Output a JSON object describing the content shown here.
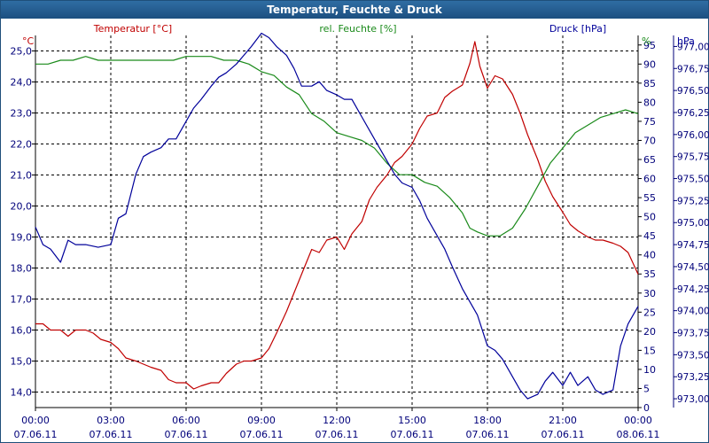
{
  "title": "Temperatur, Feuchte & Druck",
  "colors": {
    "temperature": "#c00000",
    "humidity": "#1a8a1a",
    "pressure": "#00009a",
    "axis": "#00007a",
    "titlebar": "#2a6299"
  },
  "chart_data": {
    "type": "line",
    "title": "Temperatur, Feuchte & Druck",
    "grid": true,
    "x": {
      "range": [
        "07.06.11 00:00",
        "08.06.11 00:00"
      ],
      "ticks": [
        {
          "time": "00:00",
          "date": "07.06.11"
        },
        {
          "time": "03:00",
          "date": "07.06.11"
        },
        {
          "time": "06:00",
          "date": "07.06.11"
        },
        {
          "time": "09:00",
          "date": "07.06.11"
        },
        {
          "time": "12:00",
          "date": "07.06.11"
        },
        {
          "time": "15:00",
          "date": "07.06.11"
        },
        {
          "time": "18:00",
          "date": "07.06.11"
        },
        {
          "time": "21:00",
          "date": "07.06.11"
        },
        {
          "time": "00:00",
          "date": "08.06.11"
        }
      ]
    },
    "axes": {
      "left": {
        "label": "Temperatur [°C]",
        "unit": "°C",
        "range": [
          13.5,
          25.5
        ],
        "ticks": [
          "14,0",
          "15,0",
          "16,0",
          "17,0",
          "18,0",
          "19,0",
          "20,0",
          "21,0",
          "22,0",
          "23,0",
          "24,0",
          "25,0"
        ]
      },
      "middle": {
        "label": "rel. Feuchte [%]",
        "unit": "%",
        "range": [
          0,
          97.5
        ],
        "ticks": [
          "0",
          "5",
          "10",
          "15",
          "20",
          "25",
          "30",
          "35",
          "40",
          "45",
          "50",
          "55",
          "60",
          "65",
          "70",
          "75",
          "80",
          "85",
          "90",
          "95"
        ]
      },
      "right": {
        "label": "Druck [hPa]",
        "unit": "hPa",
        "range": [
          972.9,
          977.125
        ],
        "ticks": [
          "973,00",
          "973,25",
          "973,50",
          "973,75",
          "974,00",
          "974,25",
          "974,50",
          "974,75",
          "975,00",
          "975,25",
          "975,50",
          "975,75",
          "976,00",
          "976,25",
          "976,50",
          "976,75",
          "977,00"
        ]
      }
    },
    "series": [
      {
        "name": "Temperatur [°C]",
        "axis": "left",
        "color": "#c00000",
        "hours": [
          0,
          0.3,
          0.6,
          1,
          1.3,
          1.6,
          2,
          2.3,
          2.6,
          3,
          3.3,
          3.6,
          4,
          4.3,
          4.6,
          5,
          5.3,
          5.6,
          6,
          6.3,
          6.6,
          7,
          7.3,
          7.6,
          8,
          8.3,
          8.6,
          9,
          9.3,
          9.6,
          10,
          10.3,
          10.6,
          11,
          11.3,
          11.6,
          12,
          12.3,
          12.6,
          13,
          13.3,
          13.6,
          14,
          14.3,
          14.6,
          15,
          15.3,
          15.6,
          16,
          16.3,
          16.6,
          17,
          17.3,
          17.5,
          17.7,
          18,
          18.3,
          18.6,
          19,
          19.3,
          19.6,
          20,
          20.3,
          20.6,
          21,
          21.3,
          21.6,
          22,
          22.3,
          22.6,
          23,
          23.3,
          23.6,
          24
        ],
        "values": [
          16.2,
          16.2,
          16.0,
          16.0,
          15.8,
          16.0,
          16.0,
          15.9,
          15.7,
          15.6,
          15.4,
          15.1,
          15.0,
          14.9,
          14.8,
          14.7,
          14.4,
          14.3,
          14.3,
          14.1,
          14.2,
          14.3,
          14.3,
          14.6,
          14.9,
          15.0,
          15.0,
          15.1,
          15.4,
          15.9,
          16.6,
          17.2,
          17.8,
          18.6,
          18.5,
          18.9,
          19.0,
          18.6,
          19.1,
          19.5,
          20.2,
          20.6,
          21.0,
          21.4,
          21.6,
          22.0,
          22.5,
          22.9,
          23.0,
          23.5,
          23.7,
          23.9,
          24.6,
          25.3,
          24.5,
          23.8,
          24.2,
          24.1,
          23.6,
          23.0,
          22.3,
          21.5,
          20.8,
          20.3,
          19.8,
          19.4,
          19.2,
          19.0,
          18.9,
          18.9,
          18.8,
          18.7,
          18.5,
          17.8
        ]
      },
      {
        "name": "rel. Feuchte [%]",
        "axis": "middle",
        "color": "#1a8a1a",
        "hours": [
          0,
          0.5,
          1,
          1.5,
          2,
          2.5,
          3,
          3.5,
          4,
          4.5,
          5,
          5.5,
          6,
          6.5,
          7,
          7.5,
          8,
          8.5,
          9,
          9.5,
          10,
          10.5,
          11,
          11.5,
          12,
          12.5,
          13,
          13.5,
          14,
          14.5,
          15,
          15.5,
          16,
          16.5,
          17,
          17.3,
          17.6,
          18,
          18.5,
          19,
          19.5,
          20,
          20.5,
          21,
          21.5,
          22,
          22.5,
          23,
          23.5,
          24
        ],
        "values": [
          90,
          90,
          91,
          91,
          92,
          91,
          91,
          91,
          91,
          91,
          91,
          91,
          92,
          92,
          92,
          91,
          91,
          90,
          88,
          87,
          84,
          82,
          77,
          75,
          72,
          71,
          70,
          68,
          64,
          61,
          61,
          59,
          58,
          55,
          51,
          47,
          46,
          45,
          45,
          47,
          52,
          58,
          64,
          68,
          72,
          74,
          76,
          77,
          78,
          77
        ]
      },
      {
        "name": "Druck [hPa]",
        "axis": "right",
        "color": "#00009a",
        "hours": [
          0,
          0.3,
          0.6,
          1,
          1.3,
          1.6,
          2,
          2.5,
          3,
          3.3,
          3.6,
          4,
          4.3,
          4.6,
          5,
          5.3,
          5.6,
          6,
          6.3,
          6.6,
          7,
          7.3,
          7.6,
          8,
          8.3,
          8.6,
          9,
          9.3,
          9.6,
          10,
          10.3,
          10.6,
          11,
          11.3,
          11.6,
          12,
          12.3,
          12.6,
          13,
          13.3,
          13.6,
          14,
          14.3,
          14.6,
          15,
          15.3,
          15.6,
          16,
          16.3,
          16.6,
          17,
          17.3,
          17.6,
          18,
          18.3,
          18.6,
          19,
          19.3,
          19.6,
          20,
          20.3,
          20.6,
          21,
          21.3,
          21.6,
          22,
          22.3,
          22.6,
          23,
          23.3,
          23.6,
          24
        ],
        "values": [
          974.95,
          974.75,
          974.7,
          974.55,
          974.8,
          974.75,
          974.75,
          974.72,
          974.75,
          975.05,
          975.1,
          975.55,
          975.75,
          975.8,
          975.85,
          975.95,
          975.95,
          976.15,
          976.3,
          976.4,
          976.55,
          976.65,
          976.7,
          976.8,
          976.9,
          977.0,
          977.15,
          977.1,
          977.0,
          976.9,
          976.75,
          976.55,
          976.55,
          976.6,
          976.5,
          976.45,
          976.4,
          976.4,
          976.2,
          976.05,
          975.9,
          975.7,
          975.55,
          975.45,
          975.4,
          975.25,
          975.05,
          974.85,
          974.7,
          974.5,
          974.25,
          974.1,
          973.95,
          973.6,
          973.55,
          973.45,
          973.25,
          973.1,
          973.0,
          973.05,
          973.2,
          973.3,
          973.15,
          973.3,
          973.15,
          973.25,
          973.1,
          973.05,
          973.1,
          973.6,
          973.85,
          974.05
        ]
      }
    ]
  }
}
